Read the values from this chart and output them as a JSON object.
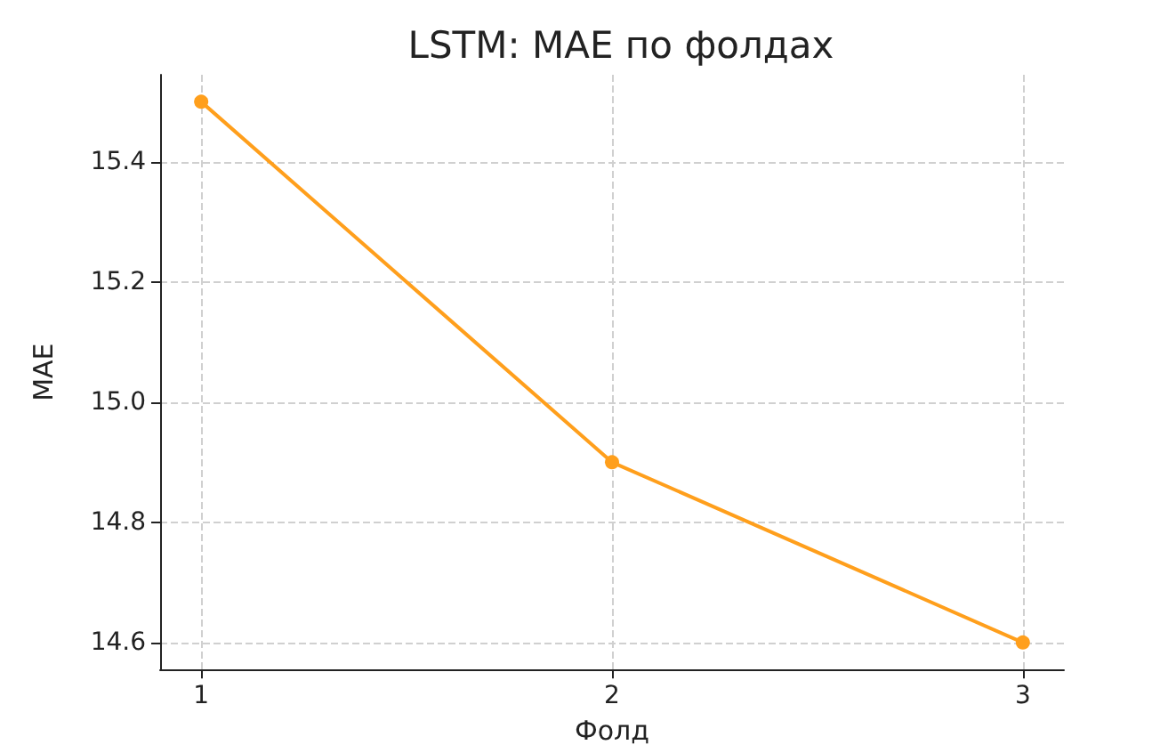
{
  "chart_data": {
    "type": "line",
    "title": "LSTM: MAE по фолдах",
    "xlabel": "Фолд",
    "ylabel": "MAE",
    "x": [
      1,
      2,
      3
    ],
    "series": [
      {
        "color": "#ff9f1c",
        "values": [
          15.5,
          14.9,
          14.6
        ]
      }
    ],
    "xlim": [
      0.9,
      3.1
    ],
    "xticks": [
      1,
      2,
      3
    ],
    "ylim": [
      14.555,
      15.545
    ],
    "yticks": [
      {
        "value": 14.6,
        "label": "14.6"
      },
      {
        "value": 14.8,
        "label": "14.8"
      },
      {
        "value": 15,
        "label": "15.0"
      },
      {
        "value": 15.2,
        "label": "15.2"
      },
      {
        "value": 15.4,
        "label": "15.4"
      }
    ],
    "grid": true,
    "marker": "circle",
    "line_style": "solid"
  }
}
